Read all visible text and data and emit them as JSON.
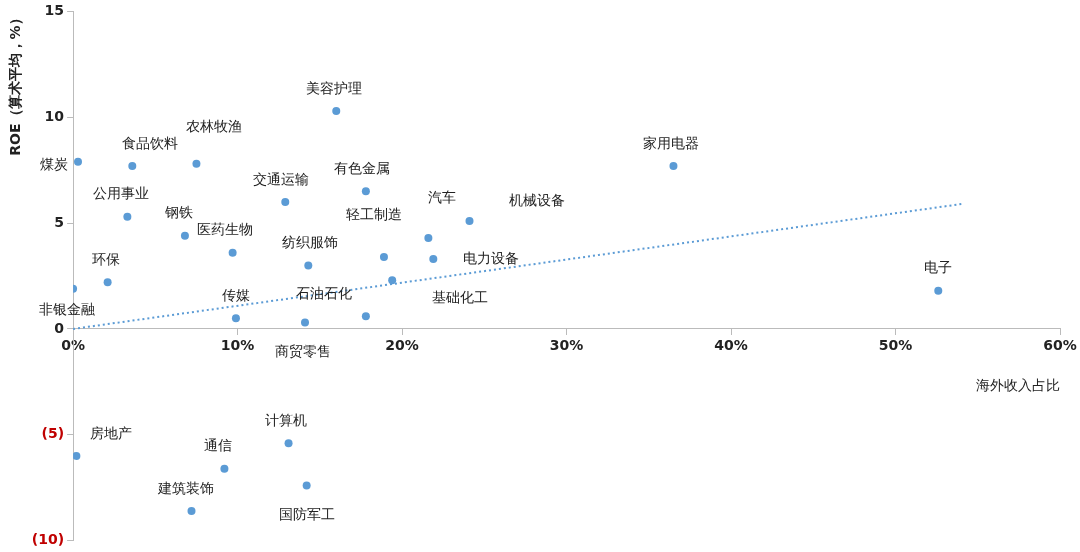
{
  "chart_data": {
    "type": "scatter",
    "xlabel": "海外收入占比",
    "ylabel": "ROE（算术平均，%）",
    "xlim": [
      0,
      60
    ],
    "xticks": [
      {
        "value": 0,
        "label": "0%"
      },
      {
        "value": 10,
        "label": "10%"
      },
      {
        "value": 20,
        "label": "20%"
      },
      {
        "value": 30,
        "label": "30%"
      },
      {
        "value": 40,
        "label": "40%"
      },
      {
        "value": 50,
        "label": "50%"
      },
      {
        "value": 60,
        "label": "60%"
      }
    ],
    "ylim": [
      -10,
      15
    ],
    "yticks": [
      {
        "value": -10,
        "label": "(10)"
      },
      {
        "value": -5,
        "label": "(5)"
      },
      0,
      5,
      10,
      15
    ],
    "grid": false,
    "legend": false,
    "marker": "circle",
    "series": [
      {
        "color": "#5b9bd5",
        "x": [
          0.3,
          3.6,
          7.5,
          16.0,
          36.5,
          12.9,
          17.8,
          3.3,
          6.8,
          9.7,
          21.6,
          24.1,
          18.9,
          21.9,
          14.3,
          2.1,
          19.4,
          0,
          52.6,
          9.9,
          17.8,
          14.1,
          0.2,
          13.1,
          9.2,
          14.2,
          7.2
        ],
        "values": [
          7.9,
          7.7,
          7.8,
          10.3,
          7.7,
          6.0,
          6.5,
          5.3,
          4.4,
          3.6,
          4.3,
          5.1,
          3.4,
          3.3,
          3.0,
          2.2,
          2.3,
          1.9,
          1.8,
          0.5,
          0.6,
          0.3,
          -6.0,
          -5.4,
          -6.6,
          -7.4,
          -8.6
        ]
      },
      {
        "type": "line",
        "color": "#5b9bd5",
        "line_style": "dotted",
        "marker": "none",
        "x": [
          0,
          54
        ],
        "values": [
          0,
          5.9
        ]
      }
    ],
    "annotations": [
      {
        "text": "煤炭",
        "x": 0.3,
        "y": 7.9
      },
      {
        "text": "食品饮料",
        "x": 3.6,
        "y": 7.7
      },
      {
        "text": "农林牧渔",
        "x": 7.5,
        "y": 7.8
      },
      {
        "text": "美容护理",
        "x": 16.0,
        "y": 10.3
      },
      {
        "text": "家用电器",
        "x": 36.5,
        "y": 7.7
      },
      {
        "text": "交通运输",
        "x": 12.9,
        "y": 6.0
      },
      {
        "text": "有色金属",
        "x": 17.8,
        "y": 6.5
      },
      {
        "text": "公用事业",
        "x": 3.3,
        "y": 5.3
      },
      {
        "text": "钢铁",
        "x": 6.8,
        "y": 4.4
      },
      {
        "text": "医药生物",
        "x": 9.7,
        "y": 3.6
      },
      {
        "text": "汽车",
        "x": 21.6,
        "y": 4.3
      },
      {
        "text": "机械设备",
        "x": 24.1,
        "y": 5.1
      },
      {
        "text": "轻工制造",
        "x": 18.9,
        "y": 3.4
      },
      {
        "text": "电力设备",
        "x": 21.9,
        "y": 3.3
      },
      {
        "text": "纺织服饰",
        "x": 14.3,
        "y": 3.0
      },
      {
        "text": "环保",
        "x": 2.1,
        "y": 2.2
      },
      {
        "text": "基础化工",
        "x": 19.4,
        "y": 2.3
      },
      {
        "text": "非银金融",
        "x": 0,
        "y": 1.9
      },
      {
        "text": "电子",
        "x": 52.6,
        "y": 1.8
      },
      {
        "text": "传媒",
        "x": 9.9,
        "y": 0.5
      },
      {
        "text": "石油石化",
        "x": 17.8,
        "y": 0.6
      },
      {
        "text": "商贸零售",
        "x": 14.1,
        "y": 0.3
      },
      {
        "text": "房地产",
        "x": 0.2,
        "y": -6.0
      },
      {
        "text": "计算机",
        "x": 13.1,
        "y": -5.4
      },
      {
        "text": "通信",
        "x": 9.2,
        "y": -6.6
      },
      {
        "text": "国防军工",
        "x": 14.2,
        "y": -7.4
      },
      {
        "text": "建筑装饰",
        "x": 7.2,
        "y": -8.6
      }
    ]
  }
}
